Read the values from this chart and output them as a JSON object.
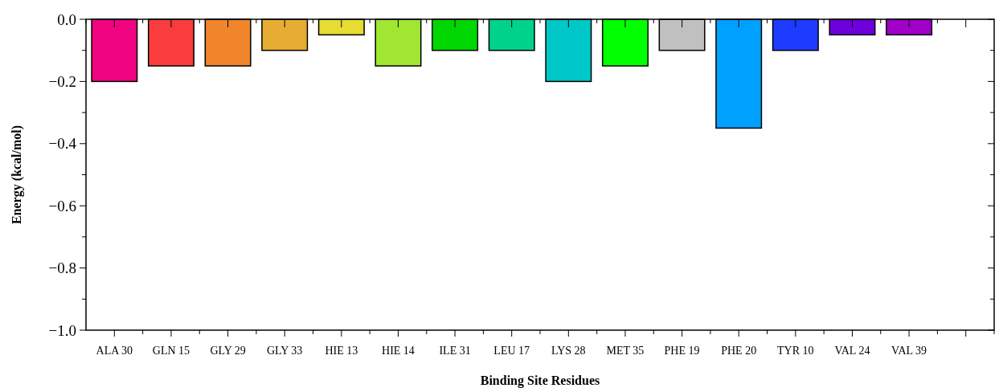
{
  "chart_data": {
    "type": "bar",
    "xlabel": "Binding Site Residues",
    "ylabel": "Energy (kcal/mol)",
    "categories": [
      "ALA 30",
      "GLN 15",
      "GLY 29",
      "GLY 33",
      "HIE 13",
      "HIE 14",
      "ILE 31",
      "LEU 17",
      "LYS 28",
      "MET 35",
      "PHE 19",
      "PHE 20",
      "TYR 10",
      "VAL 24",
      "VAL 39",
      null
    ],
    "values": [
      -0.2,
      -0.15,
      -0.15,
      -0.1,
      -0.05,
      -0.15,
      -0.1,
      -0.1,
      -0.2,
      -0.15,
      -0.1,
      -0.35,
      -0.1,
      -0.05,
      -0.05,
      null
    ],
    "colors": [
      "#f0047f",
      "#f93d3d",
      "#f0852b",
      "#e6ad32",
      "#e6dc32",
      "#a0e632",
      "#00d700",
      "#00d28c",
      "#00c8c8",
      "#00ff00",
      "#c0c0c0",
      "#00a0ff",
      "#1e3cff",
      "#6e00dc",
      "#a000c8",
      null
    ],
    "ylim": [
      -1,
      0
    ],
    "yticks": [
      {
        "value": 0,
        "label": "0.0"
      },
      {
        "value": -0.1,
        "label": null
      },
      {
        "value": -0.2,
        "label": "−0.2"
      },
      {
        "value": -0.3,
        "label": null
      },
      {
        "value": -0.4,
        "label": "−0.4"
      },
      {
        "value": -0.5,
        "label": null
      },
      {
        "value": -0.6,
        "label": "−0.6"
      },
      {
        "value": -0.7,
        "label": null
      },
      {
        "value": -0.8,
        "label": "−0.8"
      },
      {
        "value": -0.9,
        "label": null
      },
      {
        "value": -1,
        "label": "−1.0"
      }
    ],
    "grid": false
  }
}
